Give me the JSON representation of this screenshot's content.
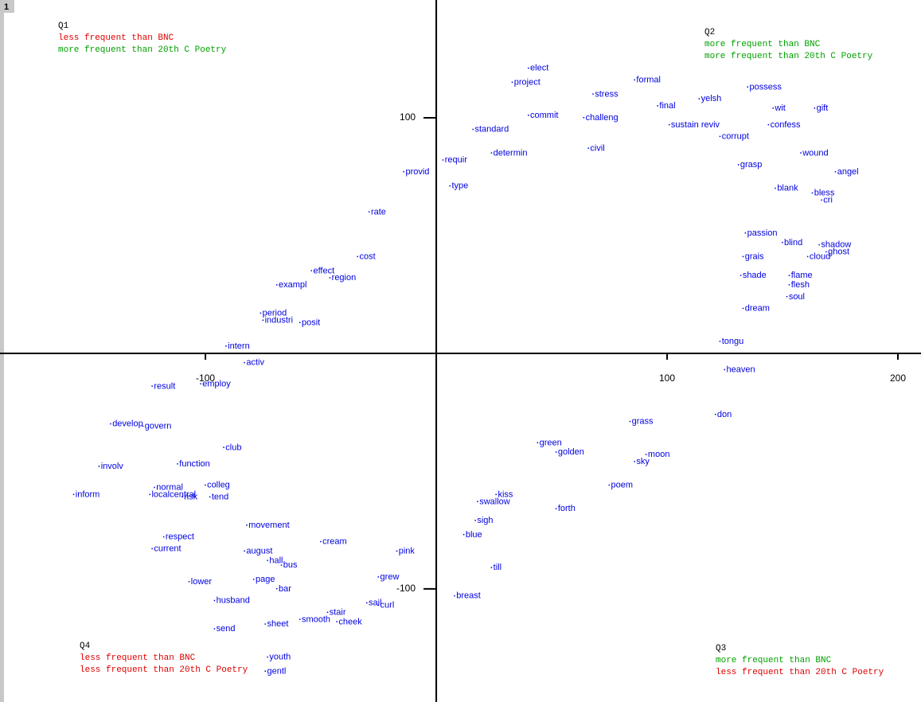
{
  "panel": "1",
  "chart_data": {
    "type": "scatter",
    "color": "#0000e0",
    "xlim": [
      -189,
      210
    ],
    "ylim": [
      -148,
      150
    ],
    "xticks": [
      -200,
      -100,
      100,
      200
    ],
    "yticks": [
      100,
      -100
    ],
    "labels": [
      "elect",
      "project",
      "formal",
      "possess",
      "stress",
      "yelsh",
      "wit",
      "gift",
      "final",
      "commit",
      "challeng",
      "sustain reviv",
      "confess",
      "standard",
      "corrupt",
      "determin",
      "wound",
      "civil",
      "requir",
      "provid",
      "angel",
      "grasp",
      "type",
      "blank",
      "bless",
      "cri",
      "rate",
      "passion",
      "blind",
      "shadow",
      "ghost",
      "cost",
      "grais",
      "cloud",
      "effect",
      "shade",
      "flame",
      "flesh",
      "region",
      "exampl",
      "soul",
      "period",
      "industri",
      "dream",
      "posit",
      "intern",
      "tongu",
      "heaven",
      "result",
      "employ",
      "activ",
      "don",
      "develop",
      "govern",
      "grass",
      "club",
      "moon",
      "golden",
      "green",
      "sky",
      "involv",
      "function",
      "normal",
      "colleg",
      "poem",
      "inform",
      "localcentral",
      "risk",
      "tend",
      "forth",
      "kiss",
      "swallow",
      "sigh",
      "movement",
      "blue",
      "respect",
      "current",
      "cream",
      "pink",
      "august",
      "hall",
      "bus",
      "till",
      "grew",
      "lower",
      "page",
      "bar",
      "breast",
      "husband",
      "sail",
      "curl",
      "stair",
      "smooth",
      "cheek",
      "sheet",
      "send",
      "youth",
      "gentl"
    ],
    "x": [
      40,
      33,
      86,
      135,
      68,
      114,
      146,
      164,
      96,
      40,
      64,
      101,
      144,
      16,
      123,
      24,
      158,
      66,
      3,
      -14,
      173,
      131,
      6,
      147,
      163,
      167,
      -29,
      134,
      150,
      166,
      169,
      -34,
      133,
      161,
      -54,
      132,
      153,
      153,
      -46,
      -69,
      152,
      -76,
      -75,
      133,
      -59,
      -91,
      123,
      125,
      -123,
      -102,
      -83,
      121,
      -141,
      -127,
      84,
      -92,
      91,
      52,
      44,
      86,
      -146,
      -112,
      -122,
      -100,
      75,
      -157,
      -124,
      -110,
      -98,
      52,
      26,
      18,
      17,
      -82,
      12,
      -118,
      -123,
      -50,
      -17,
      -83,
      -73,
      -67,
      24,
      -25,
      -107,
      -79,
      -69,
      8,
      -96,
      -30,
      -25,
      -47,
      -59,
      -43,
      -74,
      -96,
      -73,
      -74
    ],
    "y": [
      121,
      115,
      116,
      113,
      110,
      108,
      104,
      104,
      105,
      101,
      100,
      97,
      97,
      95,
      92,
      85,
      85,
      87,
      82,
      77,
      77,
      80,
      71,
      70,
      68,
      65,
      60,
      51,
      47,
      46,
      43,
      41,
      41,
      41,
      35,
      33,
      33,
      29,
      32,
      29,
      24,
      17,
      14,
      19,
      13,
      3,
      5,
      -7,
      -14,
      -13,
      -4,
      -26,
      -30,
      -31,
      -29,
      -40,
      -43,
      -42,
      -38,
      -46,
      -48,
      -47,
      -57,
      -56,
      -56,
      -60,
      -60,
      -61,
      -61,
      -66,
      -60,
      -63,
      -71,
      -73,
      -77,
      -78,
      -83,
      -80,
      -84,
      -84,
      -88,
      -90,
      -91,
      -95,
      -97,
      -96,
      -100,
      -103,
      -105,
      -106,
      -107,
      -110,
      -113,
      -114,
      -115,
      -117,
      -129,
      -135
    ],
    "annotations": [
      {
        "name": "Q1",
        "lines": [
          {
            "text": "less frequent than BNC",
            "color": "#e00000"
          },
          {
            "text": "more frequent than 20th C Poetry",
            "color": "#00a000"
          }
        ]
      },
      {
        "name": "Q2",
        "lines": [
          {
            "text": "more frequent than BNC",
            "color": "#00a000"
          },
          {
            "text": "more frequent than 20th C Poetry",
            "color": "#00a000"
          }
        ]
      },
      {
        "name": "Q3",
        "lines": [
          {
            "text": "more frequent than BNC",
            "color": "#00a000"
          },
          {
            "text": "less frequent than 20th C Poetry",
            "color": "#e00000"
          }
        ]
      },
      {
        "name": "Q4",
        "lines": [
          {
            "text": "less frequent than BNC",
            "color": "#e00000"
          },
          {
            "text": "less frequent than 20th C Poetry",
            "color": "#e00000"
          }
        ]
      }
    ]
  }
}
